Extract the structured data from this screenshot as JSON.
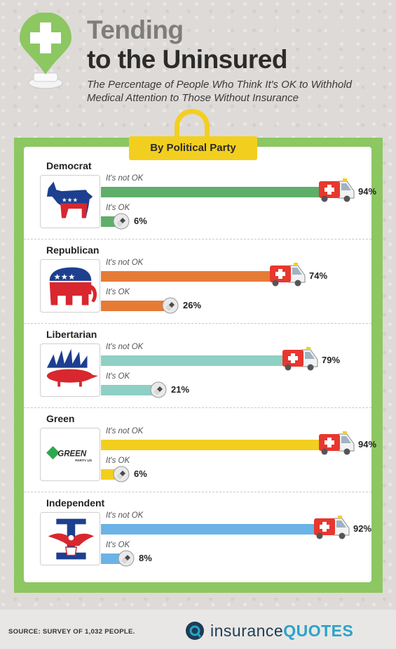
{
  "header": {
    "title_line1": "Tending",
    "title_line2": "to the Uninsured",
    "subtitle": "The Percentage of People Who Think It's OK to Withhold Medical Attention to Those Without Insurance"
  },
  "section_tab": "By Political Party",
  "labels": {
    "not_ok": "It's not OK",
    "ok": "It's OK"
  },
  "chart_data": {
    "type": "bar",
    "title": "By Political Party",
    "categories": [
      "Democrat",
      "Republican",
      "Libertarian",
      "Green",
      "Independent"
    ],
    "series": [
      {
        "name": "It's not OK",
        "values": [
          94,
          74,
          79,
          94,
          92
        ]
      },
      {
        "name": "It's OK",
        "values": [
          6,
          26,
          21,
          6,
          8
        ]
      }
    ],
    "unit": "%",
    "colors": {
      "Democrat": "#5fae6a",
      "Republican": "#e67b36",
      "Libertarian": "#8ed0c4",
      "Green": "#f2cf1f",
      "Independent": "#6bb3e6"
    }
  },
  "green_logo": {
    "word": "GREEN",
    "sub": "PARTY US"
  },
  "footer": {
    "source": "SOURCE: SURVEY OF 1,032 PEOPLE.",
    "brand_a": "insurance",
    "brand_b": "QUOTES"
  },
  "colors": {
    "frame": "#8cc762",
    "tab": "#f2cf1f",
    "ambulance_red": "#e8372e"
  }
}
